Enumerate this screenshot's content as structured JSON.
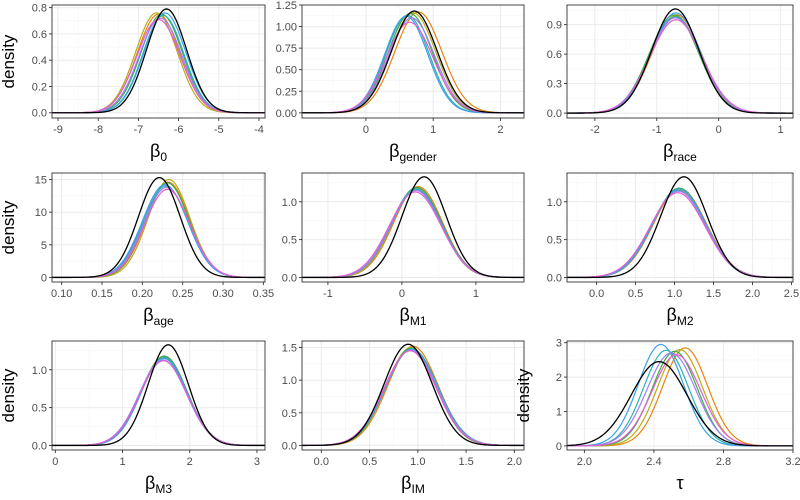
{
  "style": {
    "panel_border": "#333333",
    "grid_major": "#ebebeb",
    "grid_minor": "#f5f5f5",
    "colors": [
      "#000000",
      "#e8830f",
      "#b8ac14",
      "#3aaa4a",
      "#2fb0b0",
      "#3aa0e8",
      "#9b82f0",
      "#e060d0"
    ]
  },
  "chart_data": [
    {
      "type": "line",
      "ylabel": "density",
      "xlabel": {
        "main": "β",
        "sub": "0"
      },
      "xlim": [
        -9.15,
        -3.85
      ],
      "ylim": [
        -0.04,
        0.82
      ],
      "xticks": [
        -9,
        -8,
        -7,
        -6,
        -5,
        -4
      ],
      "xtick_labels": [
        "-9",
        "-8",
        "-7",
        "-6",
        "-5",
        "-4"
      ],
      "yticks": [
        0.0,
        0.2,
        0.4,
        0.6,
        0.8
      ],
      "ytick_labels": [
        "0.0",
        "0.2",
        "0.4",
        "0.6",
        "0.8"
      ],
      "series": [
        {
          "mean": -6.3,
          "sd": 0.5,
          "peak": 0.79
        },
        {
          "mean": -6.5,
          "sd": 0.53,
          "peak": 0.75
        },
        {
          "mean": -6.55,
          "sd": 0.52,
          "peak": 0.76
        },
        {
          "mean": -6.42,
          "sd": 0.52,
          "peak": 0.75
        },
        {
          "mean": -6.38,
          "sd": 0.51,
          "peak": 0.74
        },
        {
          "mean": -6.34,
          "sd": 0.52,
          "peak": 0.76
        },
        {
          "mean": -6.45,
          "sd": 0.53,
          "peak": 0.72
        },
        {
          "mean": -6.5,
          "sd": 0.54,
          "peak": 0.71
        }
      ]
    },
    {
      "type": "line",
      "ylabel": "",
      "xlabel": {
        "main": "β",
        "sub": "gender"
      },
      "xlim": [
        -0.95,
        2.35
      ],
      "ylim": [
        -0.06,
        1.25
      ],
      "xticks": [
        0,
        1,
        2
      ],
      "xtick_labels": [
        "0",
        "1",
        "2"
      ],
      "yticks": [
        0.0,
        0.25,
        0.5,
        0.75,
        1.0,
        1.25
      ],
      "ytick_labels": [
        "0.00",
        "0.25",
        "0.50",
        "0.75",
        "1.00",
        "1.25"
      ],
      "series": [
        {
          "mean": 0.72,
          "sd": 0.34,
          "peak": 1.18
        },
        {
          "mean": 0.78,
          "sd": 0.35,
          "peak": 1.17
        },
        {
          "mean": 0.7,
          "sd": 0.34,
          "peak": 1.16
        },
        {
          "mean": 0.66,
          "sd": 0.33,
          "peak": 1.15
        },
        {
          "mean": 0.62,
          "sd": 0.32,
          "peak": 1.13
        },
        {
          "mean": 0.6,
          "sd": 0.32,
          "peak": 1.12
        },
        {
          "mean": 0.68,
          "sd": 0.34,
          "peak": 1.1
        },
        {
          "mean": 0.65,
          "sd": 0.35,
          "peak": 1.05
        }
      ]
    },
    {
      "type": "line",
      "ylabel": "",
      "xlabel": {
        "main": "β",
        "sub": "race"
      },
      "xlim": [
        -2.45,
        1.2
      ],
      "ylim": [
        -0.05,
        1.1
      ],
      "xticks": [
        -2,
        -1,
        0,
        1
      ],
      "xtick_labels": [
        "-2",
        "-1",
        "0",
        "1"
      ],
      "yticks": [
        0.0,
        0.3,
        0.6,
        0.9
      ],
      "ytick_labels": [
        "0.0",
        "0.3",
        "0.6",
        "0.9"
      ],
      "series": [
        {
          "mean": -0.7,
          "sd": 0.38,
          "peak": 1.06
        },
        {
          "mean": -0.68,
          "sd": 0.4,
          "peak": 1.0
        },
        {
          "mean": -0.7,
          "sd": 0.4,
          "peak": 0.99
        },
        {
          "mean": -0.72,
          "sd": 0.4,
          "peak": 1.0
        },
        {
          "mean": -0.7,
          "sd": 0.41,
          "peak": 0.98
        },
        {
          "mean": -0.69,
          "sd": 0.4,
          "peak": 1.02
        },
        {
          "mean": -0.7,
          "sd": 0.41,
          "peak": 0.97
        },
        {
          "mean": -0.69,
          "sd": 0.42,
          "peak": 0.95
        }
      ]
    },
    {
      "type": "line",
      "ylabel": "density",
      "xlabel": {
        "main": "β",
        "sub": "age"
      },
      "xlim": [
        0.088,
        0.352
      ],
      "ylim": [
        -0.7,
        16.0
      ],
      "xticks": [
        0.1,
        0.15,
        0.2,
        0.25,
        0.3,
        0.35
      ],
      "xtick_labels": [
        "0.10",
        "0.15",
        "0.20",
        "0.25",
        "0.30",
        "0.35"
      ],
      "yticks": [
        0,
        5,
        10,
        15
      ],
      "ytick_labels": [
        "0",
        "5",
        "10",
        "15"
      ],
      "series": [
        {
          "mean": 0.221,
          "sd": 0.026,
          "peak": 15.3
        },
        {
          "mean": 0.232,
          "sd": 0.027,
          "peak": 14.6
        },
        {
          "mean": 0.233,
          "sd": 0.026,
          "peak": 15.0
        },
        {
          "mean": 0.231,
          "sd": 0.027,
          "peak": 14.5
        },
        {
          "mean": 0.229,
          "sd": 0.028,
          "peak": 14.0
        },
        {
          "mean": 0.228,
          "sd": 0.028,
          "peak": 14.2
        },
        {
          "mean": 0.23,
          "sd": 0.028,
          "peak": 13.8
        },
        {
          "mean": 0.231,
          "sd": 0.028,
          "peak": 13.5
        }
      ]
    },
    {
      "type": "line",
      "ylabel": "",
      "xlabel": {
        "main": "β",
        "sub": "M1"
      },
      "xlim": [
        -1.35,
        1.65
      ],
      "ylim": [
        -0.06,
        1.38
      ],
      "xticks": [
        -1,
        0,
        1
      ],
      "xtick_labels": [
        "-1",
        "0",
        "1"
      ],
      "yticks": [
        0.0,
        0.5,
        1.0
      ],
      "ytick_labels": [
        "0.0",
        "0.5",
        "1.0"
      ],
      "series": [
        {
          "mean": 0.3,
          "sd": 0.3,
          "peak": 1.33
        },
        {
          "mean": 0.22,
          "sd": 0.33,
          "peak": 1.2
        },
        {
          "mean": 0.2,
          "sd": 0.33,
          "peak": 1.18
        },
        {
          "mean": 0.2,
          "sd": 0.34,
          "peak": 1.19
        },
        {
          "mean": 0.19,
          "sd": 0.34,
          "peak": 1.17
        },
        {
          "mean": 0.2,
          "sd": 0.34,
          "peak": 1.16
        },
        {
          "mean": 0.19,
          "sd": 0.34,
          "peak": 1.15
        },
        {
          "mean": 0.18,
          "sd": 0.35,
          "peak": 1.13
        }
      ]
    },
    {
      "type": "line",
      "ylabel": "",
      "xlabel": {
        "main": "β",
        "sub": "M2"
      },
      "xlim": [
        -0.38,
        2.52
      ],
      "ylim": [
        -0.06,
        1.38
      ],
      "xticks": [
        0.0,
        0.5,
        1.0,
        1.5,
        2.0,
        2.5
      ],
      "xtick_labels": [
        "0.0",
        "0.5",
        "1.0",
        "1.5",
        "2.0",
        "2.5"
      ],
      "yticks": [
        0.0,
        0.5,
        1.0
      ],
      "ytick_labels": [
        "0.0",
        "0.5",
        "1.0"
      ],
      "series": [
        {
          "mean": 1.12,
          "sd": 0.3,
          "peak": 1.33
        },
        {
          "mean": 1.07,
          "sd": 0.34,
          "peak": 1.17
        },
        {
          "mean": 1.06,
          "sd": 0.34,
          "peak": 1.16
        },
        {
          "mean": 1.06,
          "sd": 0.34,
          "peak": 1.18
        },
        {
          "mean": 1.05,
          "sd": 0.34,
          "peak": 1.15
        },
        {
          "mean": 1.06,
          "sd": 0.34,
          "peak": 1.17
        },
        {
          "mean": 1.05,
          "sd": 0.35,
          "peak": 1.14
        },
        {
          "mean": 1.04,
          "sd": 0.35,
          "peak": 1.12
        }
      ]
    },
    {
      "type": "line",
      "ylabel": "density",
      "xlabel": {
        "main": "β",
        "sub": "M3"
      },
      "xlim": [
        -0.05,
        3.12
      ],
      "ylim": [
        -0.06,
        1.38
      ],
      "xticks": [
        0,
        1,
        2,
        3
      ],
      "xtick_labels": [
        "0",
        "1",
        "2",
        "3"
      ],
      "yticks": [
        0.0,
        0.5,
        1.0
      ],
      "ytick_labels": [
        "0.0",
        "0.5",
        "1.0"
      ],
      "series": [
        {
          "mean": 1.68,
          "sd": 0.3,
          "peak": 1.33
        },
        {
          "mean": 1.62,
          "sd": 0.34,
          "peak": 1.18
        },
        {
          "mean": 1.61,
          "sd": 0.34,
          "peak": 1.17
        },
        {
          "mean": 1.62,
          "sd": 0.34,
          "peak": 1.18
        },
        {
          "mean": 1.61,
          "sd": 0.35,
          "peak": 1.15
        },
        {
          "mean": 1.62,
          "sd": 0.34,
          "peak": 1.16
        },
        {
          "mean": 1.6,
          "sd": 0.35,
          "peak": 1.13
        },
        {
          "mean": 1.61,
          "sd": 0.35,
          "peak": 1.12
        }
      ]
    },
    {
      "type": "line",
      "ylabel": "",
      "xlabel": {
        "main": "β",
        "sub": "IM"
      },
      "xlim": [
        -0.2,
        2.1
      ],
      "ylim": [
        -0.07,
        1.6
      ],
      "xticks": [
        0.0,
        0.5,
        1.0,
        1.5,
        2.0
      ],
      "xtick_labels": [
        "0.0",
        "0.5",
        "1.0",
        "1.5",
        "2.0"
      ],
      "yticks": [
        0.0,
        0.5,
        1.0,
        1.5
      ],
      "ytick_labels": [
        "0.0",
        "0.5",
        "1.0",
        "1.5"
      ],
      "series": [
        {
          "mean": 0.9,
          "sd": 0.25,
          "peak": 1.55
        },
        {
          "mean": 0.95,
          "sd": 0.26,
          "peak": 1.52
        },
        {
          "mean": 0.93,
          "sd": 0.26,
          "peak": 1.5
        },
        {
          "mean": 0.93,
          "sd": 0.26,
          "peak": 1.49
        },
        {
          "mean": 0.94,
          "sd": 0.27,
          "peak": 1.48
        },
        {
          "mean": 0.93,
          "sd": 0.27,
          "peak": 1.47
        },
        {
          "mean": 0.93,
          "sd": 0.27,
          "peak": 1.46
        },
        {
          "mean": 0.92,
          "sd": 0.27,
          "peak": 1.45
        }
      ]
    },
    {
      "type": "line",
      "ylabel": "density",
      "xlabel": {
        "main": "τ",
        "sub": ""
      },
      "xlim": [
        1.9,
        3.2
      ],
      "ylim": [
        -0.12,
        3.05
      ],
      "xticks": [
        2.0,
        2.4,
        2.8,
        3.2
      ],
      "xtick_labels": [
        "2.0",
        "2.4",
        "2.8",
        "3.2"
      ],
      "yticks": [
        0,
        1,
        2,
        3
      ],
      "ytick_labels": [
        "0",
        "1",
        "2",
        "3"
      ],
      "series": [
        {
          "mean": 2.43,
          "sd": 0.16,
          "peak": 2.45
        },
        {
          "mean": 2.58,
          "sd": 0.13,
          "peak": 2.85
        },
        {
          "mean": 2.55,
          "sd": 0.13,
          "peak": 2.8
        },
        {
          "mean": 2.52,
          "sd": 0.13,
          "peak": 2.75
        },
        {
          "mean": 2.47,
          "sd": 0.13,
          "peak": 2.78
        },
        {
          "mean": 2.44,
          "sd": 0.13,
          "peak": 2.95
        },
        {
          "mean": 2.5,
          "sd": 0.14,
          "peak": 2.7
        },
        {
          "mean": 2.53,
          "sd": 0.14,
          "peak": 2.65
        }
      ]
    }
  ]
}
